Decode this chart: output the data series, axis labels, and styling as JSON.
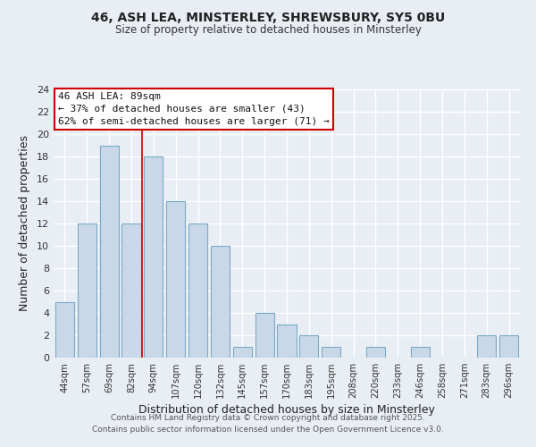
{
  "title1": "46, ASH LEA, MINSTERLEY, SHREWSBURY, SY5 0BU",
  "title2": "Size of property relative to detached houses in Minsterley",
  "xlabel": "Distribution of detached houses by size in Minsterley",
  "ylabel": "Number of detached properties",
  "bar_color": "#c8d8e8",
  "bar_edge_color": "#7aaac8",
  "categories": [
    "44sqm",
    "57sqm",
    "69sqm",
    "82sqm",
    "94sqm",
    "107sqm",
    "120sqm",
    "132sqm",
    "145sqm",
    "157sqm",
    "170sqm",
    "183sqm",
    "195sqm",
    "208sqm",
    "220sqm",
    "233sqm",
    "246sqm",
    "258sqm",
    "271sqm",
    "283sqm",
    "296sqm"
  ],
  "values": [
    5,
    12,
    19,
    12,
    18,
    14,
    12,
    10,
    1,
    4,
    3,
    2,
    1,
    0,
    1,
    0,
    1,
    0,
    0,
    2,
    2
  ],
  "ylim": [
    0,
    24
  ],
  "yticks": [
    0,
    2,
    4,
    6,
    8,
    10,
    12,
    14,
    16,
    18,
    20,
    22,
    24
  ],
  "annotation_line1": "46 ASH LEA: 89sqm",
  "annotation_line2": "← 37% of detached houses are smaller (43)",
  "annotation_line3": "62% of semi-detached houses are larger (71) →",
  "annotation_box_color": "#ffffff",
  "annotation_box_edge": "#cc0000",
  "red_line_x": 3.5,
  "footer1": "Contains HM Land Registry data © Crown copyright and database right 2025.",
  "footer2": "Contains public sector information licensed under the Open Government Licence v3.0.",
  "bg_color": "#e8eef4",
  "grid_color": "#ffffff"
}
